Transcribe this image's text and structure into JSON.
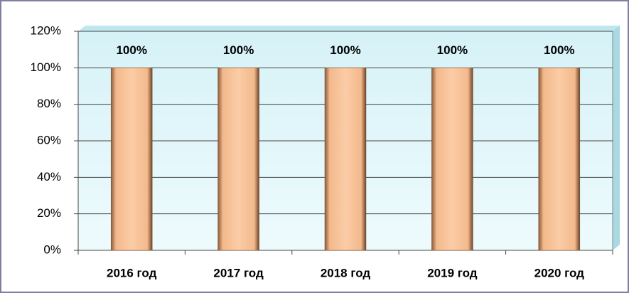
{
  "chart_data": {
    "type": "bar",
    "categories": [
      "2016 год",
      "2017 год",
      "2018 год",
      "2019 год",
      "2020 год"
    ],
    "values": [
      100,
      100,
      100,
      100,
      100
    ],
    "value_labels": [
      "100%",
      "100%",
      "100%",
      "100%",
      "100%"
    ],
    "color": "#f8c49a",
    "ylim": [
      0,
      120
    ],
    "yticks": [
      {
        "value": 0,
        "label": "0%"
      },
      {
        "value": 20,
        "label": "20%"
      },
      {
        "value": 40,
        "label": "40%"
      },
      {
        "value": 60,
        "label": "60%"
      },
      {
        "value": 80,
        "label": "80%"
      },
      {
        "value": 100,
        "label": "100%"
      },
      {
        "value": 120,
        "label": "120%"
      }
    ],
    "grid": true
  }
}
